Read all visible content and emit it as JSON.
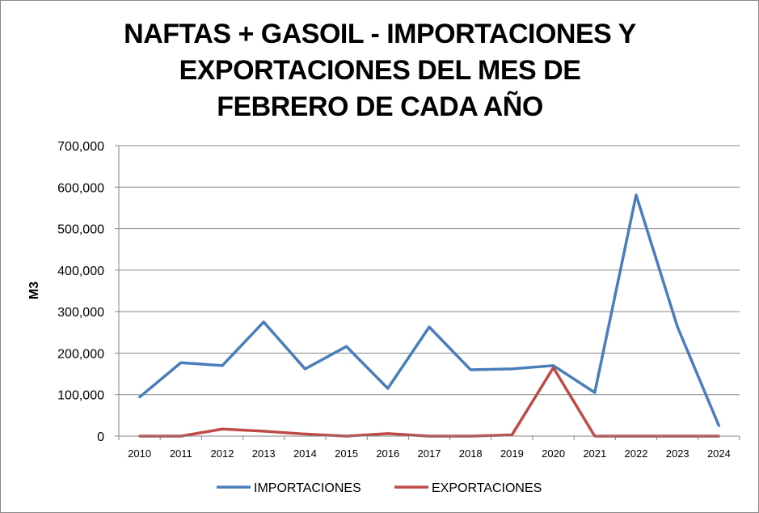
{
  "chart_data": {
    "type": "line",
    "title_lines": [
      "NAFTAS + GASOIL - IMPORTACIONES Y",
      "EXPORTACIONES DEL MES DE",
      "FEBRERO DE CADA AÑO"
    ],
    "xlabel": "",
    "ylabel": "M3",
    "ylim": [
      0,
      700000
    ],
    "yticks": [
      0,
      100000,
      200000,
      300000,
      400000,
      500000,
      600000,
      700000
    ],
    "ytick_labels": [
      "0",
      "100,000",
      "200,000",
      "300,000",
      "400,000",
      "500,000",
      "600,000",
      "700,000"
    ],
    "grid": true,
    "legend_position": "bottom",
    "categories": [
      "2010",
      "2011",
      "2012",
      "2013",
      "2014",
      "2015",
      "2016",
      "2017",
      "2018",
      "2019",
      "2020",
      "2021",
      "2022",
      "2023",
      "2024"
    ],
    "series": [
      {
        "name": "IMPORTACIONES",
        "color": "#4A7EBB",
        "values": [
          94000,
          177000,
          170000,
          275000,
          162000,
          216000,
          115000,
          263000,
          160000,
          162000,
          170000,
          105000,
          581000,
          263000,
          25000
        ]
      },
      {
        "name": "EXPORTACIONES",
        "color": "#BE4B48",
        "values": [
          0,
          0,
          17000,
          12000,
          5000,
          0,
          6000,
          0,
          0,
          3000,
          165000,
          0,
          0,
          0,
          0
        ]
      }
    ]
  }
}
